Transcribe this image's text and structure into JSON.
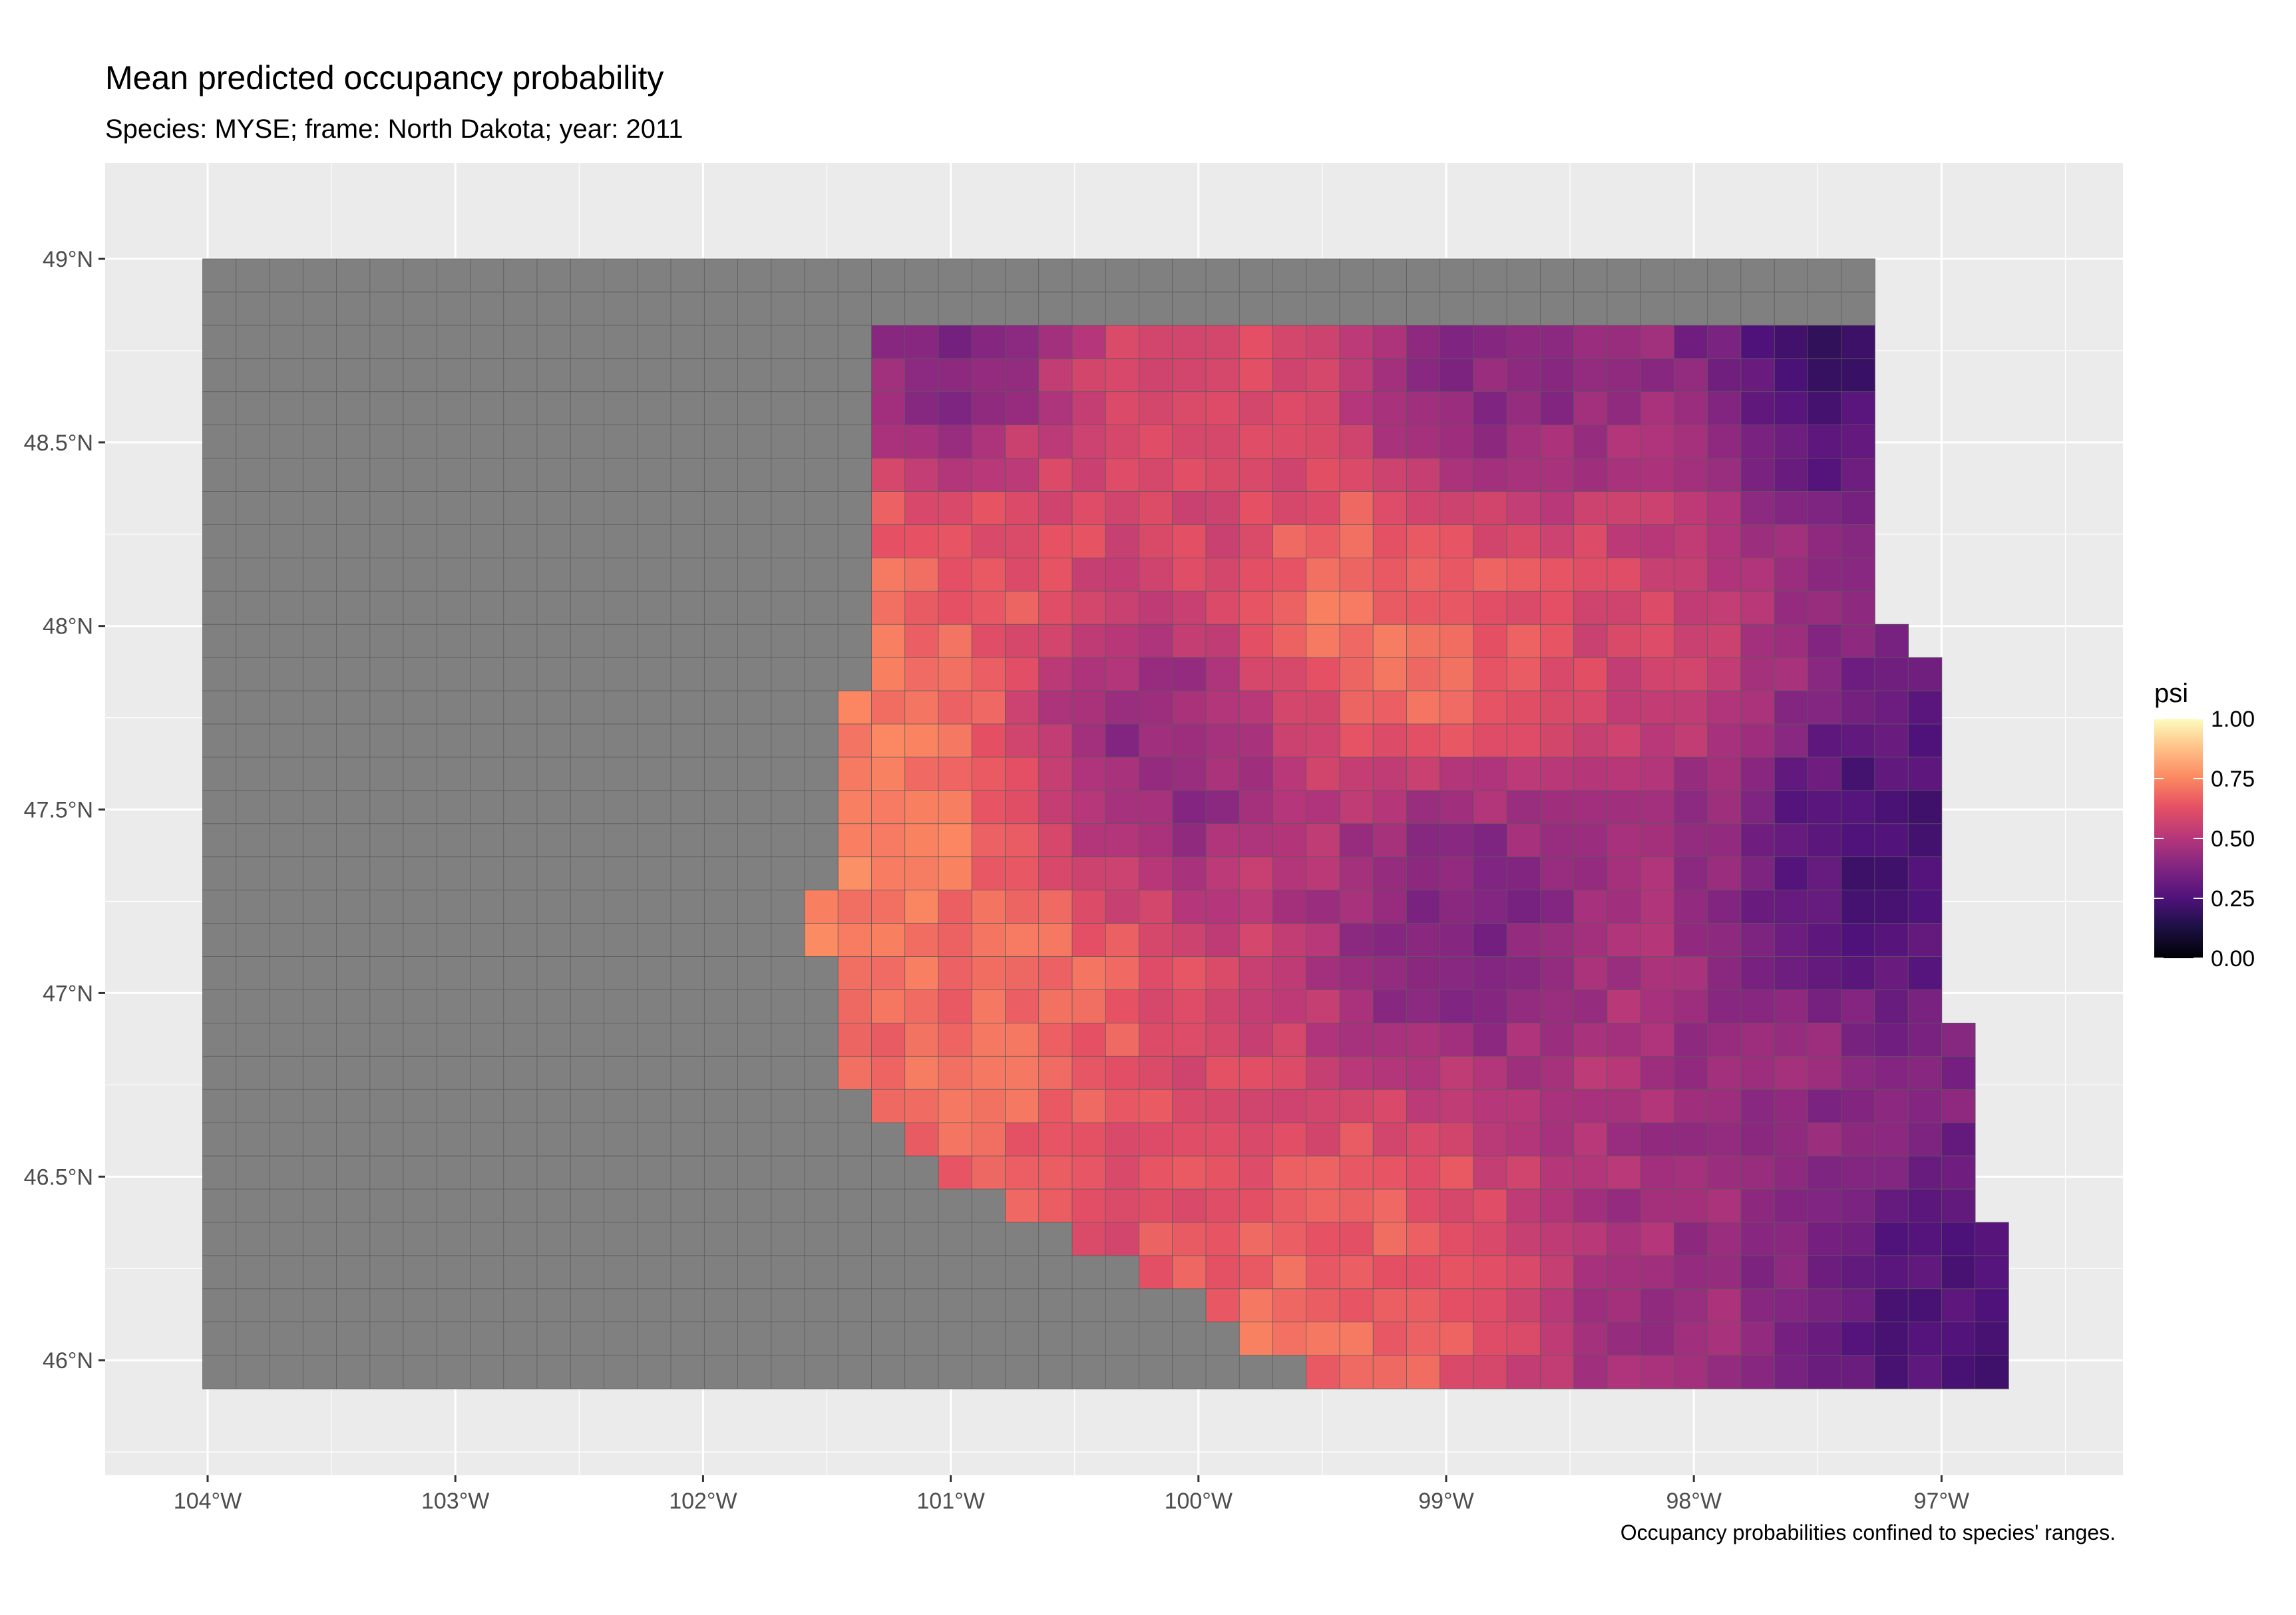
{
  "header": {
    "title": "Mean predicted occupancy probability",
    "subtitle": "Species: MYSE; frame: North Dakota; year: 2011"
  },
  "caption": "Occupancy probabilities confined to species' ranges.",
  "axes": {
    "x_ticks": [
      {
        "value": -104,
        "label": "104°W"
      },
      {
        "value": -103,
        "label": "103°W"
      },
      {
        "value": -102,
        "label": "102°W"
      },
      {
        "value": -101,
        "label": "101°W"
      },
      {
        "value": -100,
        "label": "100°W"
      },
      {
        "value": -99,
        "label": "99°W"
      },
      {
        "value": -98,
        "label": "98°W"
      },
      {
        "value": -97,
        "label": "97°W"
      }
    ],
    "y_ticks": [
      {
        "value": 49,
        "label": "49°N"
      },
      {
        "value": 48.5,
        "label": "48.5°N"
      },
      {
        "value": 48,
        "label": "48°N"
      },
      {
        "value": 47.5,
        "label": "47.5°N"
      },
      {
        "value": 47,
        "label": "47°N"
      },
      {
        "value": 46.5,
        "label": "46.5°N"
      },
      {
        "value": 46,
        "label": "46°N"
      }
    ]
  },
  "legend": {
    "title": "psi",
    "ticks": [
      "1.00",
      "0.75",
      "0.50",
      "0.25",
      "0.00"
    ],
    "colormap": "magma",
    "range": [
      0,
      1
    ]
  },
  "colors": {
    "panel_background": "#ebebeb",
    "grid": "#ffffff",
    "outside_range_cell": "#808080",
    "cell_border": "#5a5a5a"
  },
  "chart_data": {
    "type": "heatmap",
    "title": "Mean predicted occupancy probability",
    "subtitle": "Species: MYSE; frame: North Dakota; year: 2011",
    "value_name": "psi",
    "xlim": [
      -104.4,
      -96.7
    ],
    "ylim": [
      45.7,
      49.3
    ],
    "cell_size_deg": {
      "lon": 0.135,
      "lat": 0.0905
    },
    "gray_region": "cells west of about 101.3°W to 100.7°W are outside the species range (no value)",
    "occupancy_surface": {
      "western_edge_lon_by_lat": [
        [
          48.85,
          -101.25
        ],
        [
          48.1,
          -101.3
        ],
        [
          47.6,
          -101.45
        ],
        [
          47.2,
          -101.55
        ],
        [
          46.7,
          -101.4
        ],
        [
          46.5,
          -101.0
        ],
        [
          46.3,
          -100.6
        ],
        [
          46.0,
          -99.6
        ]
      ],
      "eastern_edge_lon_by_lat": [
        [
          48.9,
          -97.27
        ],
        [
          48.05,
          -97.27
        ],
        [
          47.95,
          -97.15
        ],
        [
          47.8,
          -97.01
        ],
        [
          47.0,
          -97.01
        ],
        [
          46.85,
          -96.89
        ],
        [
          46.35,
          -96.89
        ],
        [
          46.3,
          -96.7
        ],
        [
          45.9,
          -96.7
        ]
      ],
      "southern_edge_lat_by_lon": [
        [
          -101.3,
          46.5
        ],
        [
          -100.8,
          46.4
        ],
        [
          -100.4,
          46.3
        ],
        [
          -100.1,
          46.2
        ],
        [
          -99.8,
          46.05
        ],
        [
          -99.5,
          45.95
        ],
        [
          -99.0,
          45.9
        ],
        [
          -96.7,
          45.9
        ]
      ],
      "hotspots": [
        {
          "lon": -101.1,
          "lat": 47.0,
          "psi": 0.68
        },
        {
          "lon": -100.75,
          "lat": 47.05,
          "psi": 0.72
        },
        {
          "lon": -101.4,
          "lat": 47.55,
          "psi": 0.8
        },
        {
          "lon": -101.2,
          "lat": 47.85,
          "psi": 0.68
        },
        {
          "lon": -99.2,
          "lat": 46.3,
          "psi": 0.7
        },
        {
          "lon": -99.5,
          "lat": 46.05,
          "psi": 0.78
        },
        {
          "lon": -99.0,
          "lat": 48.0,
          "psi": 0.75
        },
        {
          "lon": -99.2,
          "lat": 48.1,
          "psi": 0.8
        },
        {
          "lon": -98.2,
          "lat": 48.05,
          "psi": 0.62
        },
        {
          "lon": -100.2,
          "lat": 48.5,
          "psi": 0.58
        },
        {
          "lon": -99.8,
          "lat": 48.7,
          "psi": 0.6
        }
      ],
      "lowspots": [
        {
          "lon": -97.4,
          "lat": 48.75,
          "psi": 0.12
        },
        {
          "lon": -97.2,
          "lat": 47.4,
          "psi": 0.15
        },
        {
          "lon": -97.0,
          "lat": 46.1,
          "psi": 0.18
        },
        {
          "lon": -101.0,
          "lat": 48.8,
          "psi": 0.18
        },
        {
          "lon": -100.2,
          "lat": 47.65,
          "psi": 0.3
        },
        {
          "lon": -99.0,
          "lat": 47.2,
          "psi": 0.3
        },
        {
          "lon": -98.9,
          "lat": 48.6,
          "psi": 0.32
        }
      ]
    }
  }
}
